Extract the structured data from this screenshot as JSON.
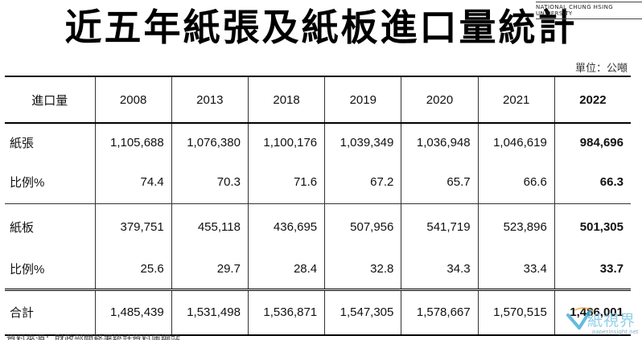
{
  "title": "近五年紙張及紙板進口量統計",
  "university_logo": "NATIONAL CHUNG HSING UNIVERSITY",
  "unit": "單位：公噸",
  "table": {
    "headers": [
      "進口量",
      "2008",
      "2013",
      "2018",
      "2019",
      "2020",
      "2021",
      "2022"
    ],
    "rows": [
      {
        "label": "紙張",
        "cells": [
          "1,105,688",
          "1,076,380",
          "1,100,176",
          "1,039,349",
          "1,036,948",
          "1,046,619",
          "984,696"
        ]
      },
      {
        "label": "比例%",
        "cells": [
          "74.4",
          "70.3",
          "71.6",
          "67.2",
          "65.7",
          "66.6",
          "66.3"
        ]
      },
      {
        "label": "紙板",
        "cells": [
          "379,751",
          "455,118",
          "436,695",
          "507,956",
          "541,719",
          "523,896",
          "501,305"
        ]
      },
      {
        "label": "比例%",
        "cells": [
          "25.6",
          "29.7",
          "28.4",
          "32.8",
          "34.3",
          "33.4",
          "33.7"
        ]
      },
      {
        "label": "合計",
        "cells": [
          "1,485,439",
          "1,531,498",
          "1,536,871",
          "1,547,305",
          "1,578,667",
          "1,570,515",
          "1,486,001"
        ]
      }
    ]
  },
  "source": "資料來源：財政部關務署統計資料庫網站",
  "watermark": {
    "text": "紙視界",
    "url": "paperinsight.net"
  }
}
